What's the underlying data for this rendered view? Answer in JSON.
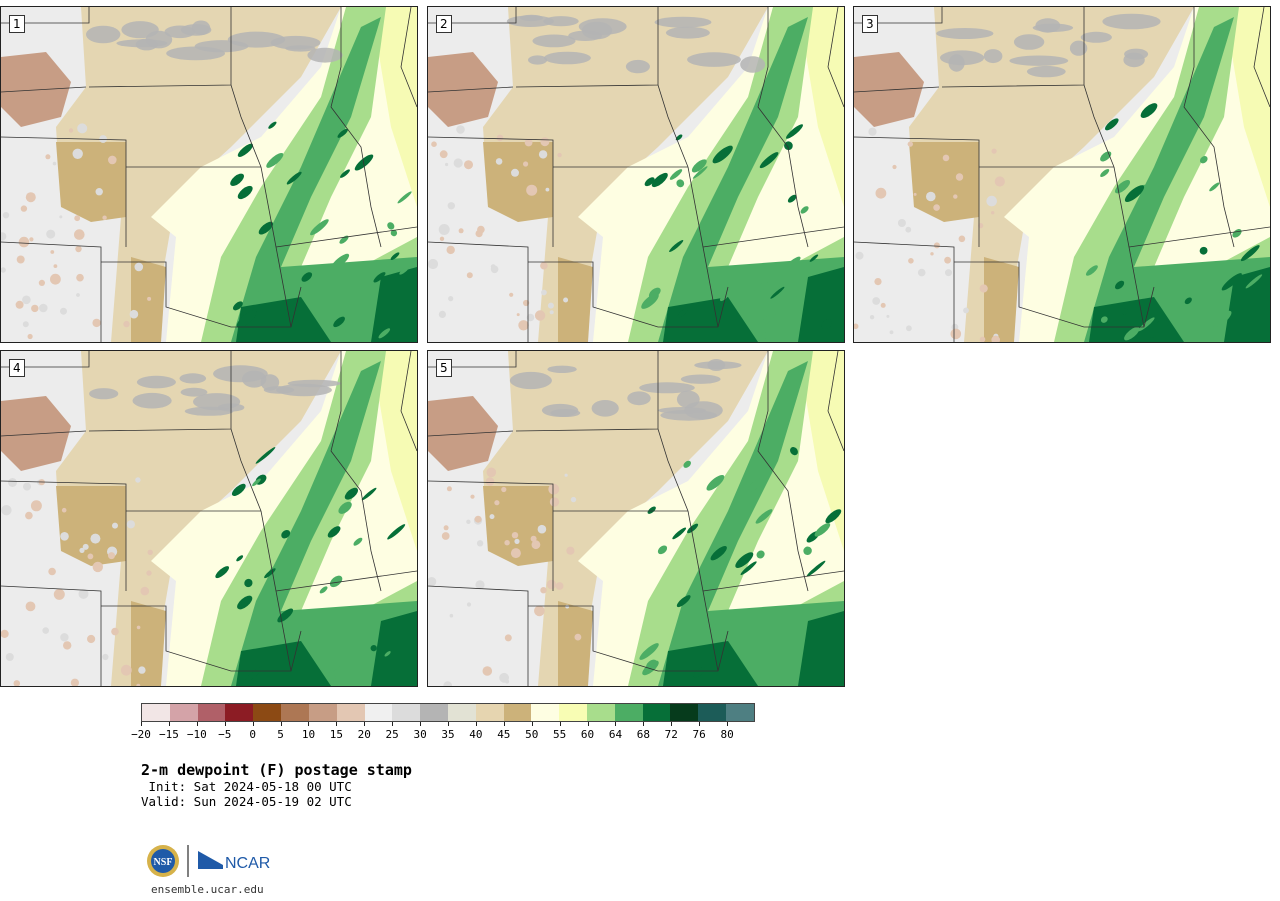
{
  "panels": [
    {
      "label": "1"
    },
    {
      "label": "2"
    },
    {
      "label": "3"
    },
    {
      "label": "4"
    },
    {
      "label": "5"
    }
  ],
  "colorbar": {
    "colors": [
      "#f2e6e6",
      "#d4a3a8",
      "#b06068",
      "#8c1c24",
      "#8c4a14",
      "#ad7754",
      "#c79d85",
      "#e3c7b3",
      "#f0f0f0",
      "#dcdcdc",
      "#b4b4b4",
      "#e2e2d4",
      "#e6d5b0",
      "#ccb27a",
      "#fefee2",
      "#f8fdb4",
      "#a8dd8c",
      "#4cad64",
      "#066f38",
      "#063b1c",
      "#1c5c58",
      "#4e7f82"
    ],
    "ticks": [
      "−20",
      "−15",
      "−10",
      "−5",
      "0",
      "5",
      "10",
      "15",
      "20",
      "25",
      "30",
      "35",
      "40",
      "45",
      "50",
      "55",
      "60",
      "64",
      "68",
      "72",
      "76",
      "80"
    ]
  },
  "title": "2-m dewpoint (F) postage stamp",
  "init": " Init: Sat 2024-05-18 00 UTC",
  "valid": "Valid: Sun 2024-05-19 02 UTC",
  "logo": {
    "nsf": "NSF",
    "ncar": "NCAR"
  },
  "url": "ensemble.ucar.edu"
}
